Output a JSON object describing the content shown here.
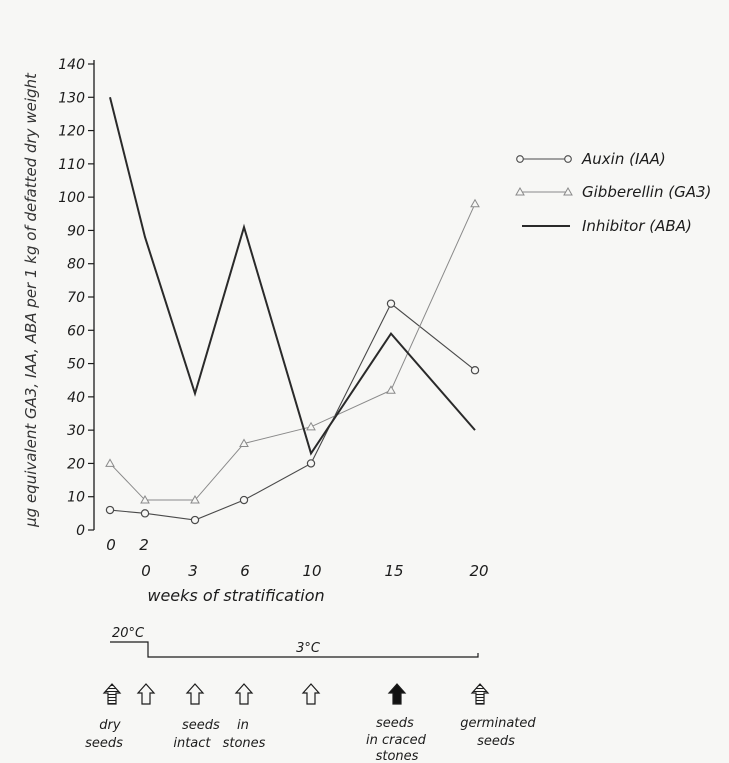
{
  "chart_data": {
    "type": "line",
    "ylabel": "µg equivalent GA3, IAA, ABA per 1 kg of defatted dry weight",
    "xlabel": "weeks of stratification",
    "ylim": [
      0,
      140
    ],
    "yticks": [
      0,
      10,
      20,
      30,
      40,
      50,
      60,
      70,
      80,
      90,
      100,
      110,
      120,
      130,
      140
    ],
    "x_points": [
      "0",
      "2",
      "0",
      "3",
      "6",
      "10",
      "15",
      "20"
    ],
    "x_tick_labels_upper": [
      "0",
      "2"
    ],
    "x_tick_labels_lower": [
      "0",
      "3",
      "6",
      "10",
      "15",
      "20"
    ],
    "series": [
      {
        "name": "Auxin (IAA)",
        "marker": "circle",
        "color": "#4a4a4a",
        "values": [
          6,
          5,
          null,
          3,
          9,
          20,
          68,
          48
        ]
      },
      {
        "name": "Gibberellin (GA3)",
        "marker": "triangle",
        "color": "#8a8a8a",
        "values": [
          20,
          9,
          null,
          9,
          26,
          31,
          42,
          98
        ]
      },
      {
        "name": "Inhibitor (ABA)",
        "marker": "none",
        "color": "#2a2a2a",
        "values": [
          130,
          88,
          null,
          41,
          91,
          23,
          59,
          30
        ]
      }
    ],
    "temperature": {
      "warm": "20°C",
      "cold": "3°C"
    },
    "stages": [
      {
        "label": "dry seeds",
        "arrow": "hatched"
      },
      {
        "label": "",
        "arrow": "open"
      },
      {
        "label": "seeds intact stones",
        "arrow": "open"
      },
      {
        "label": "",
        "arrow": "open"
      },
      {
        "label": "",
        "arrow": "open"
      },
      {
        "label": "seeds in craced stones",
        "arrow": "filled"
      },
      {
        "label": "germinated seeds",
        "arrow": "hatched"
      }
    ],
    "legend_position": "top-right"
  }
}
